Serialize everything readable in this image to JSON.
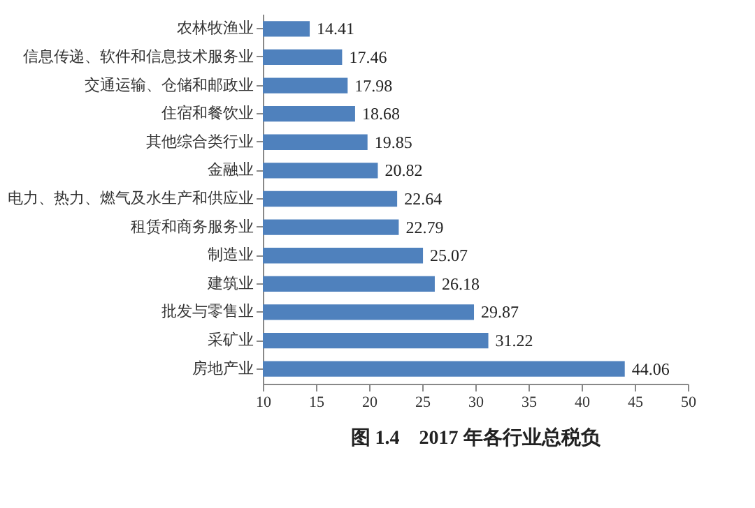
{
  "chart_data": {
    "type": "bar",
    "orientation": "horizontal",
    "title": "图 1.4　2017 年各行业总税负",
    "categories": [
      "农林牧渔业",
      "信息传递、软件和信息技术服务业",
      "交通运输、仓储和邮政业",
      "住宿和餐饮业",
      "其他综合类行业",
      "金融业",
      "电力、热力、燃气及水生产和供应业",
      "租赁和商务服务业",
      "制造业",
      "建筑业",
      "批发与零售业",
      "采矿业",
      "房地产业"
    ],
    "values": [
      14.41,
      17.46,
      17.98,
      18.68,
      19.85,
      20.82,
      22.64,
      22.79,
      25.07,
      26.18,
      29.87,
      31.22,
      44.06
    ],
    "color": "#4f81bd",
    "xlim": [
      10,
      50
    ],
    "xticks": [
      10,
      15,
      20,
      25,
      30,
      35,
      40,
      45,
      50
    ],
    "data_labels": true
  }
}
